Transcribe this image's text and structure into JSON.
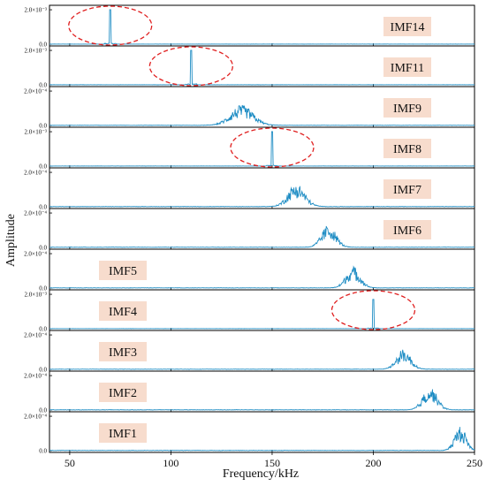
{
  "chart_data": {
    "type": "line",
    "xlabel": "Frequency/kHz",
    "ylabel": "Amplitude",
    "xlim": [
      40,
      250
    ],
    "x_ticks": [
      "50",
      "100",
      "150",
      "200",
      "250"
    ],
    "x_tick_values": [
      50,
      100,
      150,
      200,
      250
    ],
    "color": "#1f8dc4",
    "label_bg": "#f7dccd",
    "highlight_color": "#e02020",
    "panels": [
      {
        "label": "IMF14",
        "y_top_label": "2.0×10⁻³",
        "y_zero_label": "0.0",
        "ylim_max": 0.0021,
        "peak": {
          "type": "spike",
          "center": 70,
          "amplitude": 0.002
        },
        "label_side": "right",
        "highlighted": true
      },
      {
        "label": "IMF11",
        "y_top_label": "2.0×10⁻³",
        "y_zero_label": "0.0",
        "ylim_max": 0.0021,
        "peak": {
          "type": "spike",
          "center": 110,
          "amplitude": 0.002
        },
        "label_side": "right",
        "highlighted": true
      },
      {
        "label": "IMF9",
        "y_top_label": "2.0×10⁻⁴",
        "y_zero_label": "0.0",
        "ylim_max": 0.00025,
        "peak": {
          "type": "band",
          "center": 135,
          "width": 8,
          "amplitude": 0.00014
        },
        "label_side": "right",
        "highlighted": false
      },
      {
        "label": "IMF8",
        "y_top_label": "2.0×10⁻³",
        "y_zero_label": "0.0",
        "ylim_max": 0.0021,
        "peak": {
          "type": "spike",
          "center": 150,
          "amplitude": 0.002
        },
        "label_side": "right",
        "highlighted": true
      },
      {
        "label": "IMF7",
        "y_top_label": "2.0×10⁻⁴",
        "y_zero_label": "0.0",
        "ylim_max": 0.00025,
        "peak": {
          "type": "band",
          "center": 162,
          "width": 6,
          "amplitude": 0.00016
        },
        "label_side": "right",
        "highlighted": false
      },
      {
        "label": "IMF6",
        "y_top_label": "2.0×10⁻⁴",
        "y_zero_label": "0.0",
        "ylim_max": 0.00025,
        "peak": {
          "type": "band",
          "center": 178,
          "width": 5,
          "amplitude": 0.00016
        },
        "label_side": "right",
        "highlighted": false
      },
      {
        "label": "IMF5",
        "y_top_label": "2.0×10⁻⁴",
        "y_zero_label": "0.0",
        "ylim_max": 0.00025,
        "peak": {
          "type": "band",
          "center": 190,
          "width": 5,
          "amplitude": 0.00015
        },
        "label_side": "left",
        "highlighted": false
      },
      {
        "label": "IMF4",
        "y_top_label": "2.0×10⁻³",
        "y_zero_label": "0.0",
        "ylim_max": 0.0021,
        "peak": {
          "type": "spike",
          "center": 200,
          "amplitude": 0.0017
        },
        "label_side": "left",
        "highlighted": true
      },
      {
        "label": "IMF3",
        "y_top_label": "2.0×10⁻⁴",
        "y_zero_label": "0.0",
        "ylim_max": 0.00025,
        "peak": {
          "type": "band",
          "center": 215,
          "width": 5,
          "amplitude": 0.00014
        },
        "label_side": "left",
        "highlighted": false
      },
      {
        "label": "IMF2",
        "y_top_label": "2.0×10⁻⁴",
        "y_zero_label": "0.0",
        "ylim_max": 0.00025,
        "peak": {
          "type": "band",
          "center": 228,
          "width": 5,
          "amplitude": 0.00016
        },
        "label_side": "left",
        "highlighted": false
      },
      {
        "label": "IMF1",
        "y_top_label": "2.0×10⁻⁴",
        "y_zero_label": "0.0",
        "ylim_max": 0.00025,
        "peak": {
          "type": "band",
          "center": 243,
          "width": 4,
          "amplitude": 0.00017
        },
        "label_side": "left",
        "highlighted": false
      }
    ]
  }
}
